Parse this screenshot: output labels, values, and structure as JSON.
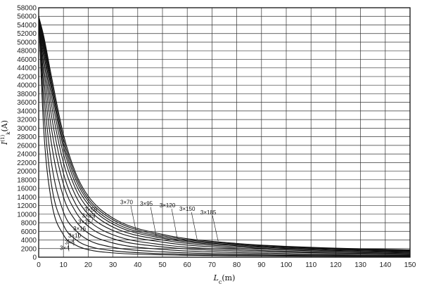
{
  "chart_data": {
    "type": "line",
    "title": "",
    "xlabel": "L",
    "xlabel_sub": "c",
    "xlabel_unit": "(m)",
    "ylabel": "I",
    "ylabel_sup": "(1)",
    "ylabel_sub": "k",
    "ylabel_unit": "(A)",
    "xlim": [
      0,
      150
    ],
    "ylim": [
      0,
      58000
    ],
    "x_ticks": [
      0,
      10,
      20,
      30,
      40,
      50,
      60,
      70,
      80,
      90,
      100,
      110,
      120,
      130,
      140,
      150
    ],
    "y_ticks": [
      0,
      2000,
      4000,
      6000,
      8000,
      10000,
      12000,
      14000,
      16000,
      18000,
      20000,
      22000,
      24000,
      26000,
      28000,
      30000,
      32000,
      34000,
      36000,
      38000,
      40000,
      42000,
      44000,
      46000,
      48000,
      50000,
      52000,
      54000,
      56000,
      58000
    ],
    "grid": true,
    "line_color": "#111111",
    "series": [
      {
        "name": "3×4",
        "values": [
          [
            0,
            56000
          ],
          [
            2,
            30000
          ],
          [
            5,
            13500
          ],
          [
            10,
            5200
          ],
          [
            15,
            2800
          ],
          [
            20,
            1750
          ],
          [
            30,
            1000
          ],
          [
            50,
            550
          ],
          [
            80,
            330
          ],
          [
            110,
            230
          ],
          [
            150,
            170
          ]
        ]
      },
      {
        "name": "3×6",
        "values": [
          [
            0,
            56000
          ],
          [
            2,
            35000
          ],
          [
            5,
            17500
          ],
          [
            10,
            7500
          ],
          [
            15,
            4100
          ],
          [
            20,
            2600
          ],
          [
            30,
            1500
          ],
          [
            50,
            820
          ],
          [
            80,
            500
          ],
          [
            110,
            360
          ],
          [
            150,
            260
          ]
        ]
      },
      {
        "name": "3×10",
        "values": [
          [
            0,
            56000
          ],
          [
            2,
            39000
          ],
          [
            5,
            22500
          ],
          [
            10,
            10500
          ],
          [
            15,
            6200
          ],
          [
            20,
            4000
          ],
          [
            30,
            2300
          ],
          [
            50,
            1250
          ],
          [
            80,
            760
          ],
          [
            110,
            540
          ],
          [
            150,
            400
          ]
        ]
      },
      {
        "name": "3×16",
        "values": [
          [
            0,
            56000
          ],
          [
            2,
            42000
          ],
          [
            5,
            27000
          ],
          [
            10,
            14000
          ],
          [
            15,
            8400
          ],
          [
            20,
            5600
          ],
          [
            30,
            3300
          ],
          [
            50,
            1800
          ],
          [
            80,
            1100
          ],
          [
            110,
            790
          ],
          [
            150,
            580
          ]
        ]
      },
      {
        "name": "3×25",
        "values": [
          [
            0,
            56000
          ],
          [
            2,
            44500
          ],
          [
            5,
            30500
          ],
          [
            10,
            17000
          ],
          [
            15,
            10500
          ],
          [
            20,
            7200
          ],
          [
            30,
            4300
          ],
          [
            50,
            2400
          ],
          [
            80,
            1450
          ],
          [
            110,
            1050
          ],
          [
            150,
            770
          ]
        ]
      },
      {
        "name": "3×35",
        "values": [
          [
            0,
            56000
          ],
          [
            2,
            46500
          ],
          [
            5,
            33500
          ],
          [
            10,
            19500
          ],
          [
            15,
            12300
          ],
          [
            20,
            8600
          ],
          [
            30,
            5200
          ],
          [
            50,
            2900
          ],
          [
            80,
            1750
          ],
          [
            110,
            1250
          ],
          [
            150,
            930
          ]
        ]
      },
      {
        "name": "3×50",
        "values": [
          [
            0,
            56000
          ],
          [
            2,
            48000
          ],
          [
            5,
            36000
          ],
          [
            10,
            22000
          ],
          [
            15,
            14200
          ],
          [
            20,
            10000
          ],
          [
            30,
            6200
          ],
          [
            50,
            3500
          ],
          [
            80,
            2100
          ],
          [
            110,
            1500
          ],
          [
            150,
            1100
          ]
        ]
      },
      {
        "name": "3×70",
        "values": [
          [
            0,
            56000
          ],
          [
            2,
            49000
          ],
          [
            5,
            38000
          ],
          [
            10,
            24000
          ],
          [
            15,
            15800
          ],
          [
            20,
            11300
          ],
          [
            30,
            7000
          ],
          [
            50,
            4000
          ],
          [
            80,
            2400
          ],
          [
            110,
            1700
          ],
          [
            150,
            1250
          ]
        ]
      },
      {
        "name": "3×95",
        "values": [
          [
            0,
            56000
          ],
          [
            2,
            49800
          ],
          [
            5,
            39500
          ],
          [
            10,
            25500
          ],
          [
            15,
            17000
          ],
          [
            20,
            12300
          ],
          [
            30,
            7700
          ],
          [
            50,
            4400
          ],
          [
            80,
            2650
          ],
          [
            110,
            1900
          ],
          [
            150,
            1400
          ]
        ]
      },
      {
        "name": "3×120",
        "values": [
          [
            0,
            56000
          ],
          [
            2,
            50500
          ],
          [
            5,
            40500
          ],
          [
            10,
            26500
          ],
          [
            15,
            18000
          ],
          [
            20,
            13000
          ],
          [
            30,
            8200
          ],
          [
            50,
            4700
          ],
          [
            80,
            2850
          ],
          [
            110,
            2050
          ],
          [
            150,
            1500
          ]
        ]
      },
      {
        "name": "3×150",
        "values": [
          [
            0,
            56000
          ],
          [
            2,
            51000
          ],
          [
            5,
            41500
          ],
          [
            10,
            27500
          ],
          [
            15,
            18800
          ],
          [
            20,
            13600
          ],
          [
            30,
            8700
          ],
          [
            50,
            5000
          ],
          [
            80,
            3050
          ],
          [
            110,
            2200
          ],
          [
            150,
            1600
          ]
        ]
      },
      {
        "name": "3×185",
        "values": [
          [
            0,
            56000
          ],
          [
            2,
            51500
          ],
          [
            5,
            42500
          ],
          [
            10,
            28500
          ],
          [
            15,
            19500
          ],
          [
            20,
            14200
          ],
          [
            30,
            9100
          ],
          [
            50,
            5300
          ],
          [
            80,
            3200
          ],
          [
            110,
            2300
          ],
          [
            150,
            1700
          ]
        ]
      }
    ],
    "annotations": [
      {
        "text": "3×70",
        "series": "3×70",
        "x": 35.5,
        "y": 12300
      },
      {
        "text": "3×95",
        "series": "3×95",
        "x": 43.5,
        "y": 12000
      },
      {
        "text": "3×120",
        "series": "3×120",
        "x": 52,
        "y": 11600
      },
      {
        "text": "3×150",
        "series": "3×150",
        "x": 60,
        "y": 10800
      },
      {
        "text": "3×185",
        "series": "3×185",
        "x": 68.5,
        "y": 10000
      },
      {
        "text": "3×50",
        "series": "3×50",
        "x": 21,
        "y": 10600
      },
      {
        "text": "3×35",
        "series": "3×35",
        "x": 20,
        "y": 9200
      },
      {
        "text": "3×25",
        "series": "3×25",
        "x": 18.5,
        "y": 7800
      },
      {
        "text": "3×16",
        "series": "3×16",
        "x": 16.5,
        "y": 6200
      },
      {
        "text": "3×10",
        "series": "3×10",
        "x": 14.5,
        "y": 4600
      },
      {
        "text": "3×6",
        "series": "3×6",
        "x": 12.5,
        "y": 3000
      },
      {
        "text": "3×4",
        "series": "3×4",
        "x": 10.5,
        "y": 1700
      }
    ]
  }
}
